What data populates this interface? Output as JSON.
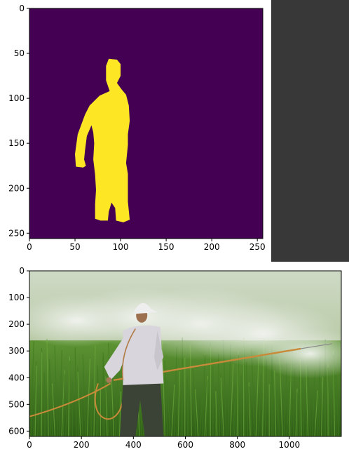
{
  "chart_data": [
    {
      "type": "image",
      "title": "",
      "colormap": "viridis",
      "colors": {
        "background": "#440154",
        "mask": "#fde725"
      },
      "xlim": [
        0,
        256
      ],
      "ylim": [
        256,
        0
      ],
      "xticks": [
        0,
        50,
        100,
        150,
        200,
        250
      ],
      "yticks": [
        0,
        50,
        100,
        150,
        200,
        250
      ],
      "mask_outline": [
        [
          87,
          56
        ],
        [
          96,
          57
        ],
        [
          100,
          62
        ],
        [
          100,
          75
        ],
        [
          96,
          83
        ],
        [
          101,
          90
        ],
        [
          106,
          96
        ],
        [
          109,
          108
        ],
        [
          110,
          125
        ],
        [
          108,
          140
        ],
        [
          108,
          152
        ],
        [
          106,
          172
        ],
        [
          108,
          184
        ],
        [
          108,
          198
        ],
        [
          108,
          215
        ],
        [
          110,
          235
        ],
        [
          103,
          238
        ],
        [
          95,
          236
        ],
        [
          94,
          222
        ],
        [
          90,
          216
        ],
        [
          87,
          226
        ],
        [
          86,
          236
        ],
        [
          78,
          236
        ],
        [
          72,
          234
        ],
        [
          72,
          218
        ],
        [
          73,
          202
        ],
        [
          72,
          185
        ],
        [
          70,
          168
        ],
        [
          71,
          150
        ],
        [
          70,
          138
        ],
        [
          68,
          130
        ],
        [
          63,
          142
        ],
        [
          61,
          158
        ],
        [
          60,
          168
        ],
        [
          62,
          175
        ],
        [
          59,
          177
        ],
        [
          51,
          176
        ],
        [
          50,
          162
        ],
        [
          53,
          140
        ],
        [
          61,
          118
        ],
        [
          66,
          108
        ],
        [
          77,
          97
        ],
        [
          88,
          92
        ],
        [
          84,
          80
        ],
        [
          84,
          64
        ]
      ]
    },
    {
      "type": "image",
      "title": "",
      "description_colors": {
        "field": "#4f8a2a",
        "mist": "#e6ebe4",
        "shirt": "#d9d5dc",
        "cap": "#eeeeee",
        "hose": "#c98a3a"
      },
      "xlim": [
        0,
        1200
      ],
      "ylim": [
        620,
        0
      ],
      "xticks": [
        0,
        200,
        400,
        600,
        800,
        1000
      ],
      "yticks": [
        0,
        100,
        200,
        300,
        400,
        500,
        600
      ]
    }
  ]
}
